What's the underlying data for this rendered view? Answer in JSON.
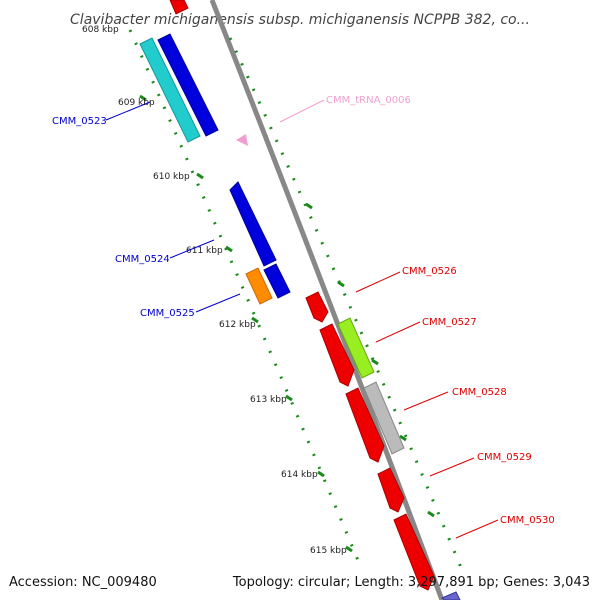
{
  "title": "Clavibacter michiganensis subsp. michiganensis NCPPB 382, co...",
  "accession": "Accession: NC_009480",
  "summary": "Topology: circular; Length: 3,297,891 bp; Genes: 3,043",
  "ticks": [
    {
      "label": "608 kbp"
    },
    {
      "label": "609 kbp"
    },
    {
      "label": "610 kbp"
    },
    {
      "label": "611 kbp"
    },
    {
      "label": "612 kbp"
    },
    {
      "label": "613 kbp"
    },
    {
      "label": "614 kbp"
    },
    {
      "label": "615 kbp"
    }
  ],
  "genes": [
    {
      "name": "CMM_0523",
      "color": "#0000cc",
      "label_color": "#0000cc"
    },
    {
      "name": "CMM_0524",
      "color": "#0000cc",
      "label_color": "#0000cc"
    },
    {
      "name": "CMM_0525",
      "color": "#0000cc",
      "label_color": "#0000cc"
    },
    {
      "name": "CMM_tRNA_0006",
      "color": "#f0a0d0",
      "label_color": "#f0a0d0"
    },
    {
      "name": "CMM_0526",
      "color": "#dd0000",
      "label_color": "#dd0000"
    },
    {
      "name": "CMM_0527",
      "color": "#dd0000",
      "label_color": "#dd0000"
    },
    {
      "name": "CMM_0528",
      "color": "#dd0000",
      "label_color": "#dd0000"
    },
    {
      "name": "CMM_0529",
      "color": "#dd0000",
      "label_color": "#dd0000"
    },
    {
      "name": "CMM_0530",
      "color": "#dd0000",
      "label_color": "#dd0000"
    }
  ],
  "colors": {
    "backbone": "#888888",
    "tick": "#1a8a1a",
    "cyan": "#22cccc",
    "blue": "#0000dd",
    "orange": "#ff8c00",
    "red": "#ee0000",
    "green": "#99ee22",
    "grey": "#bbbbbb",
    "pink": "#f0a0d0",
    "purple": "#6666cc"
  }
}
